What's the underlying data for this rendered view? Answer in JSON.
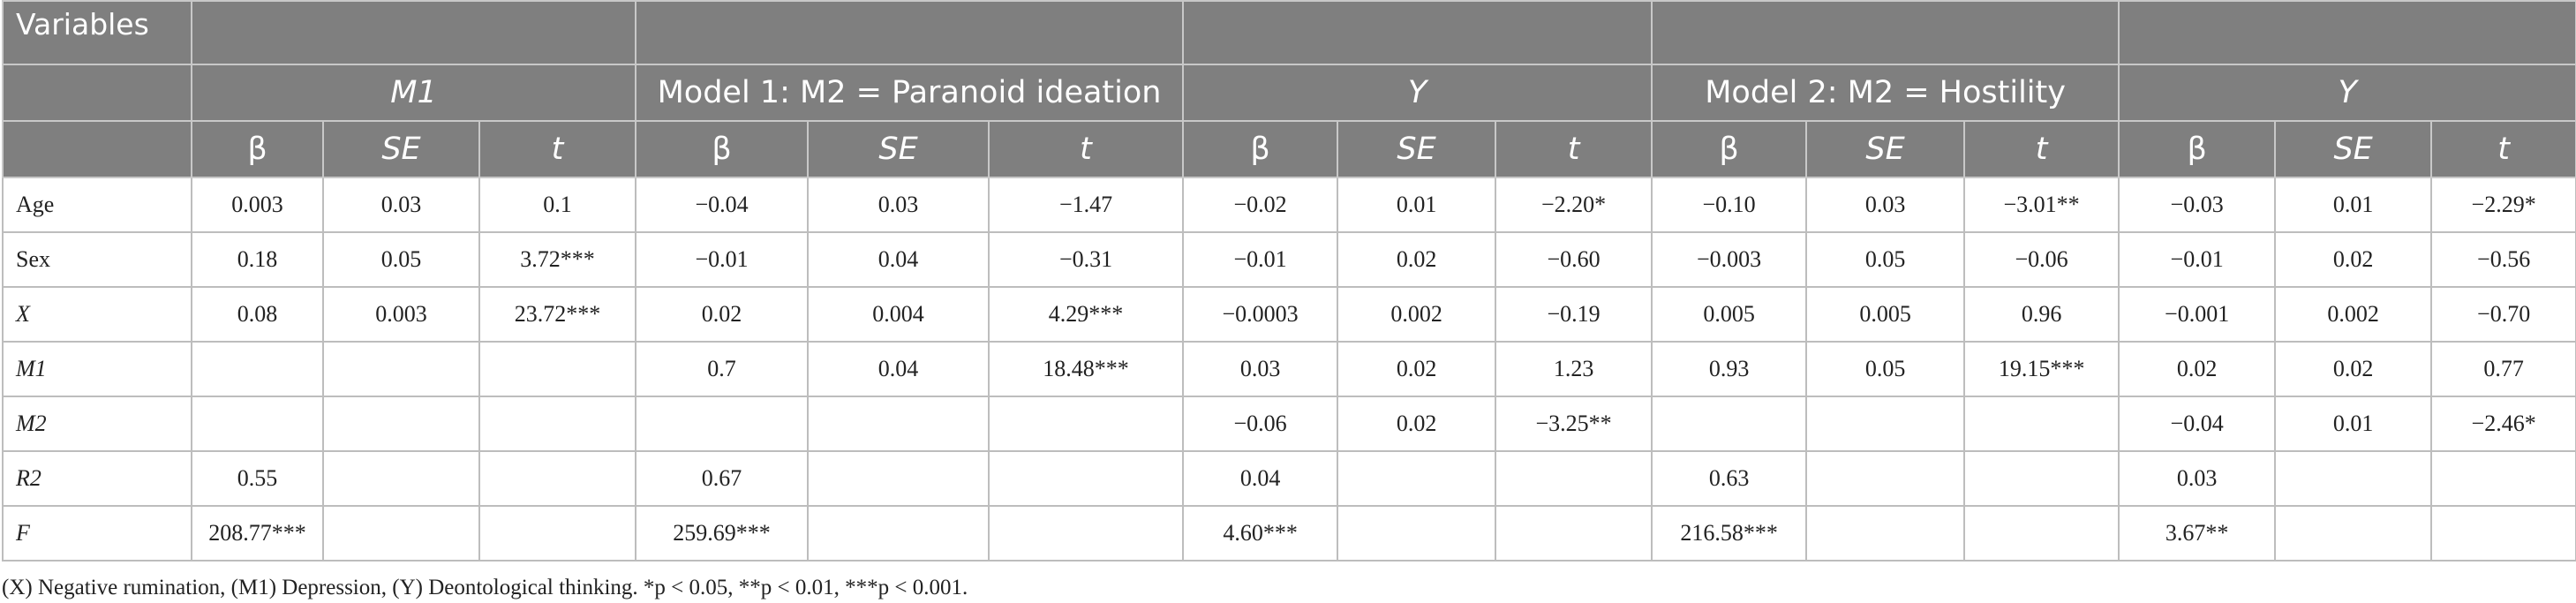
{
  "header": {
    "variables": "Variables",
    "groups": [
      "M1",
      "Model 1: M2 = Paranoid ideation",
      "Y",
      "Model 2: M2 = Hostility",
      "Y"
    ],
    "columns": [
      "β",
      "SE",
      "t",
      "β",
      "SE",
      "t",
      "β",
      "SE",
      "t",
      "β",
      "SE",
      "t",
      "β",
      "SE",
      "t"
    ]
  },
  "table": {
    "rows": [
      {
        "label": "Age",
        "cells": [
          "0.003",
          "0.03",
          "0.1",
          "−0.04",
          "0.03",
          "−1.47",
          "−0.02",
          "0.01",
          "−2.20*",
          "−0.10",
          "0.03",
          "−3.01**",
          "−0.03",
          "0.01",
          "−2.29*"
        ]
      },
      {
        "label": "Sex",
        "cells": [
          "0.18",
          "0.05",
          "3.72***",
          "−0.01",
          "0.04",
          "−0.31",
          "−0.01",
          "0.02",
          "−0.60",
          "−0.003",
          "0.05",
          "−0.06",
          "−0.01",
          "0.02",
          "−0.56"
        ]
      },
      {
        "label": "X",
        "cells": [
          "0.08",
          "0.003",
          "23.72***",
          "0.02",
          "0.004",
          "4.29***",
          "−0.0003",
          "0.002",
          "−0.19",
          "0.005",
          "0.005",
          "0.96",
          "−0.001",
          "0.002",
          "−0.70"
        ]
      },
      {
        "label": "M1",
        "cells": [
          null,
          null,
          null,
          "0.7",
          "0.04",
          "18.48***",
          "0.03",
          "0.02",
          "1.23",
          "0.93",
          "0.05",
          "19.15***",
          "0.02",
          "0.02",
          "0.77"
        ]
      },
      {
        "label": "M2",
        "cells": [
          null,
          null,
          null,
          null,
          null,
          null,
          "−0.06",
          "0.02",
          "−3.25**",
          null,
          null,
          null,
          "−0.04",
          "0.01",
          "−2.46*"
        ]
      },
      {
        "label": "R2",
        "cells": [
          "0.55",
          null,
          null,
          "0.67",
          null,
          null,
          "0.04",
          null,
          null,
          "0.63",
          null,
          null,
          "0.03",
          null,
          null
        ]
      },
      {
        "label": "F",
        "cells": [
          "208.77***",
          null,
          null,
          "259.69***",
          null,
          null,
          "4.60***",
          null,
          null,
          "216.58***",
          null,
          null,
          "3.67**",
          null,
          null
        ]
      }
    ]
  },
  "footnote": "(X) Negative rumination, (M1) Depression, (Y) Deontological thinking. *p < 0.05, **p < 0.01, ***p < 0.001."
}
